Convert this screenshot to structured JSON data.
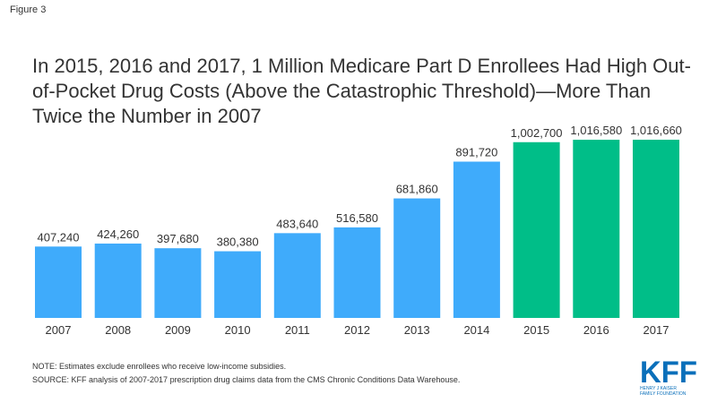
{
  "figure_label": "Figure 3",
  "chart_data": {
    "type": "bar",
    "title": "In 2015, 2016 and 2017, 1 Million Medicare Part D Enrollees Had High Out-of-Pocket Drug Costs (Above the Catastrophic Threshold)—More Than Twice the Number in 2007",
    "xlabel": "",
    "ylabel": "",
    "categories": [
      "2007",
      "2008",
      "2009",
      "2010",
      "2011",
      "2012",
      "2013",
      "2014",
      "2015",
      "2016",
      "2017"
    ],
    "values": [
      407240,
      424260,
      397680,
      380380,
      483640,
      516580,
      681860,
      891720,
      1002700,
      1016580,
      1016660
    ],
    "data_labels": [
      "407,240",
      "424,260",
      "397,680",
      "380,380",
      "483,640",
      "516,580",
      "681,860",
      "891,720",
      "1,002,700",
      "1,016,580",
      "1,016,660"
    ],
    "ylim": [
      0,
      1040000
    ],
    "grid": false,
    "colors": [
      "#3fabfb",
      "#3fabfb",
      "#3fabfb",
      "#3fabfb",
      "#3fabfb",
      "#3fabfb",
      "#3fabfb",
      "#3fabfb",
      "#00be88",
      "#00be88",
      "#00be88"
    ]
  },
  "notes": {
    "note": "NOTE: Estimates exclude enrollees who receive low-income subsidies.",
    "source": "SOURCE: KFF analysis of 2007-2017 prescription drug claims data from the CMS Chronic Conditions Data Warehouse."
  },
  "logo": {
    "text": "KFF",
    "subtext": "HENRY J KAISER FAMILY FOUNDATION",
    "color": "#0a6fba"
  }
}
